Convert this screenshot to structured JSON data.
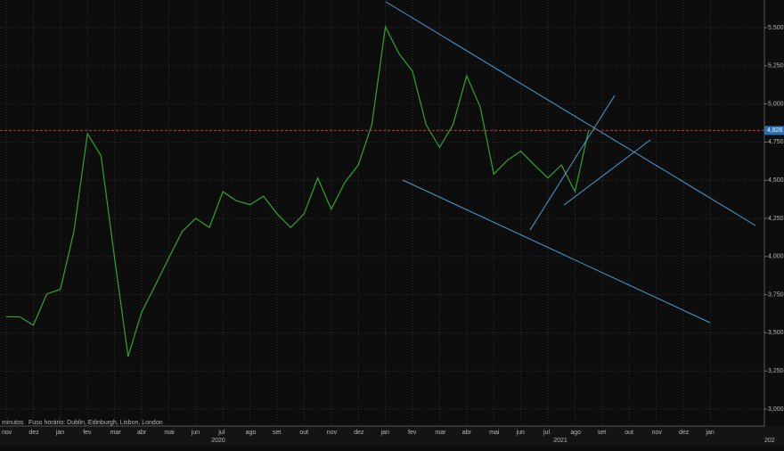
{
  "chart_data": {
    "type": "line",
    "categories": [
      "nov",
      null,
      "dez",
      null,
      "jan",
      null,
      "fev",
      null,
      "mar",
      null,
      "abr",
      null,
      "mai",
      null,
      "jun",
      null,
      "jul",
      null,
      "ago",
      null,
      "set",
      null,
      "out",
      null,
      "nov",
      null,
      "dez",
      null,
      "jan",
      null,
      "fev",
      null,
      "mar",
      null,
      "abr",
      null,
      "mai",
      null,
      "jun",
      null,
      "jul",
      null,
      "ago",
      null,
      "set",
      null,
      "out",
      null,
      "nov",
      null,
      "dez",
      null,
      "jan",
      null
    ],
    "series": [
      {
        "color": "#2fa52f",
        "values": [
          3605,
          3605,
          3550,
          3755,
          3785,
          4165,
          4805,
          4660,
          3990,
          3345,
          3635,
          3810,
          3990,
          4165,
          4250,
          4190,
          4425,
          4365,
          4340,
          4395,
          4280,
          4190,
          4280,
          4515,
          4310,
          4485,
          4600,
          4865,
          5505,
          5330,
          5215,
          4865,
          4715,
          4865,
          5185,
          4980,
          4540,
          4630,
          4690,
          4600,
          4515,
          4600,
          4425,
          4826,
          null,
          null,
          null,
          null,
          null,
          null,
          null,
          null,
          null,
          null
        ]
      }
    ],
    "ylim": [
      2889,
      5681
    ],
    "yticks": [
      {
        "value": 3000,
        "label": "3,000"
      },
      {
        "value": 3250,
        "label": "3,250"
      },
      {
        "value": 3500,
        "label": "3,500"
      },
      {
        "value": 3750,
        "label": "3,750"
      },
      {
        "value": 4000,
        "label": "4,000"
      },
      {
        "value": 4250,
        "label": "4,250"
      },
      {
        "value": 4500,
        "label": "4,500"
      },
      {
        "value": 4750,
        "label": "4,750"
      },
      {
        "value": 5000,
        "label": "5,000"
      },
      {
        "value": 5250,
        "label": "5,250"
      },
      {
        "value": 5500,
        "label": "5,500"
      }
    ],
    "last_price": {
      "value": 4826,
      "label": "4,826"
    },
    "years": [
      "2020",
      "2021",
      "202"
    ],
    "interval_label": "minutos",
    "timezone_label": "Fuso horário: Dublin, Edinburgh, Lisbon, London",
    "grid": true
  }
}
